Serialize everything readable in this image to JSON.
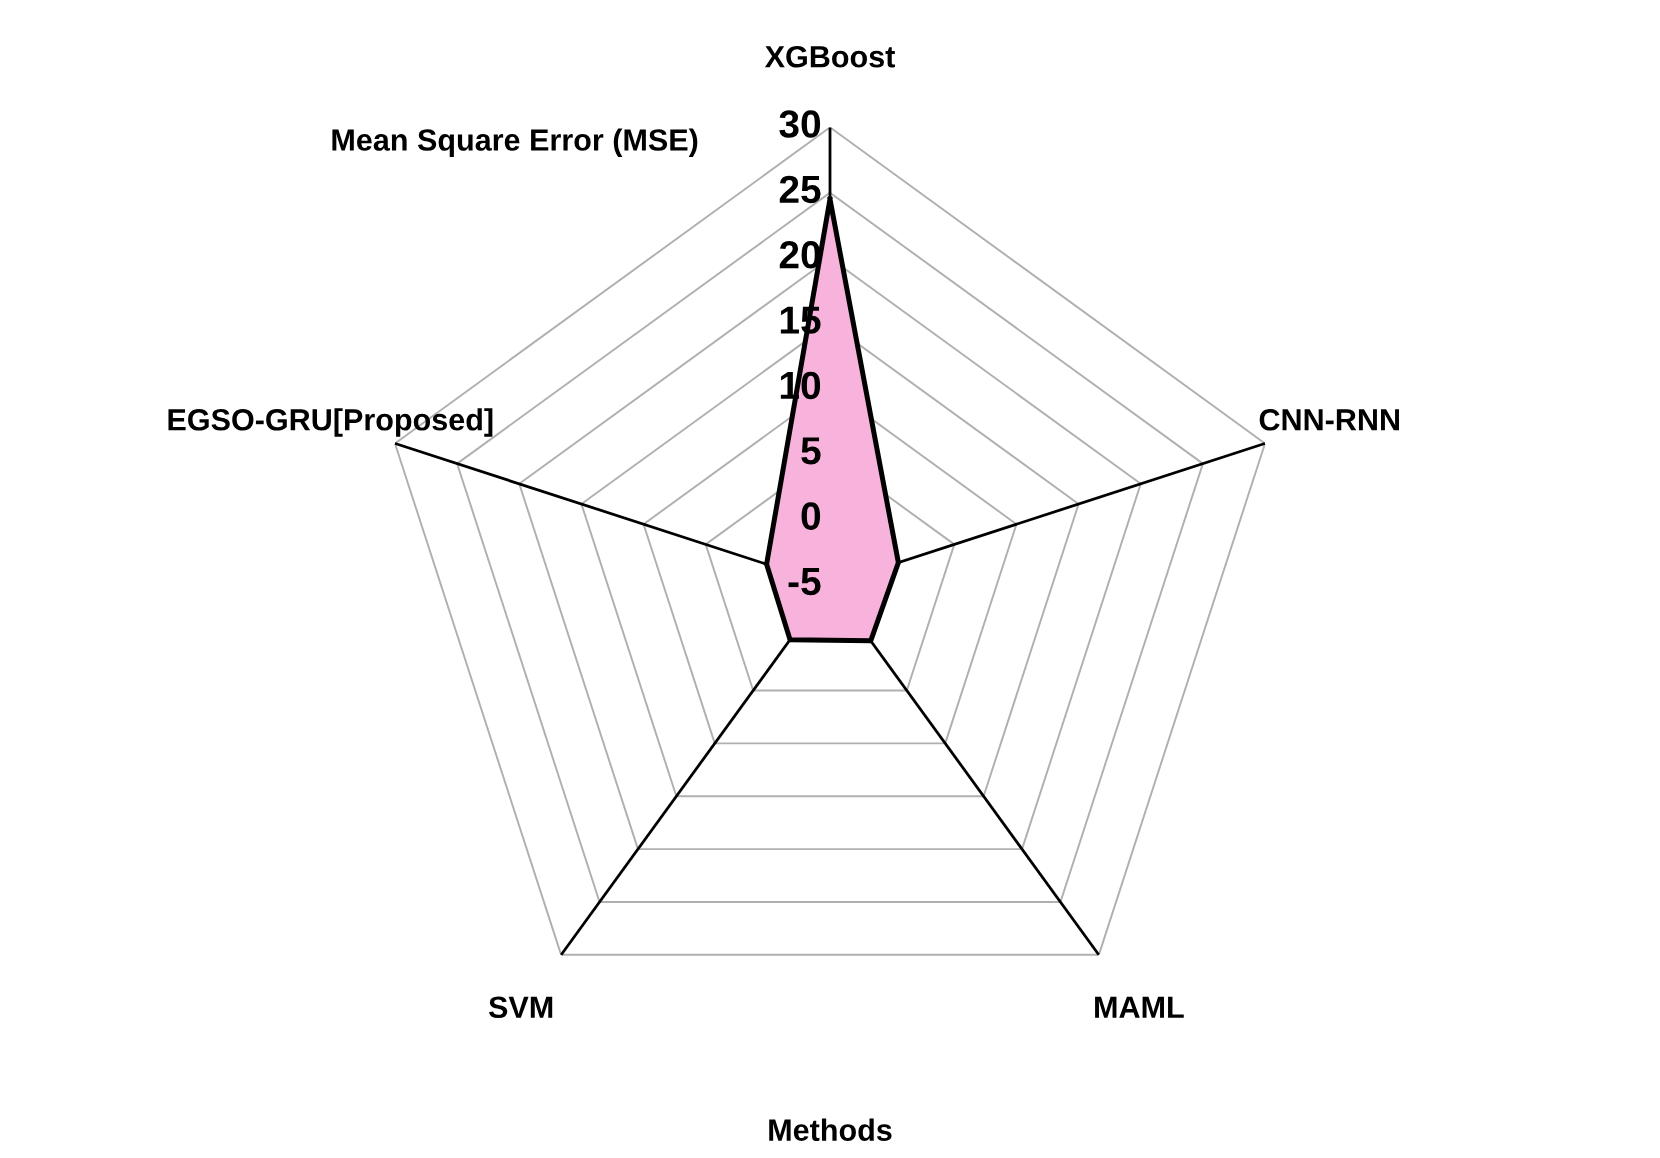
{
  "chart_data": {
    "type": "radar",
    "title": "Mean Square Error (MSE)",
    "xlabel": "Methods",
    "categories": [
      "XGBoost",
      "CNN-RNN",
      "MAML",
      "SVM",
      "EGSO-GRU[Proposed]"
    ],
    "series": [
      {
        "color": "#f7b3dc",
        "values": [
          24.5,
          0.5,
          0.3,
          0.2,
          0.1
        ]
      }
    ],
    "ylim": [
      -5,
      30
    ],
    "yticks": [
      -5,
      0,
      5,
      10,
      15,
      20,
      25,
      30
    ],
    "grid": true,
    "legend": false
  }
}
